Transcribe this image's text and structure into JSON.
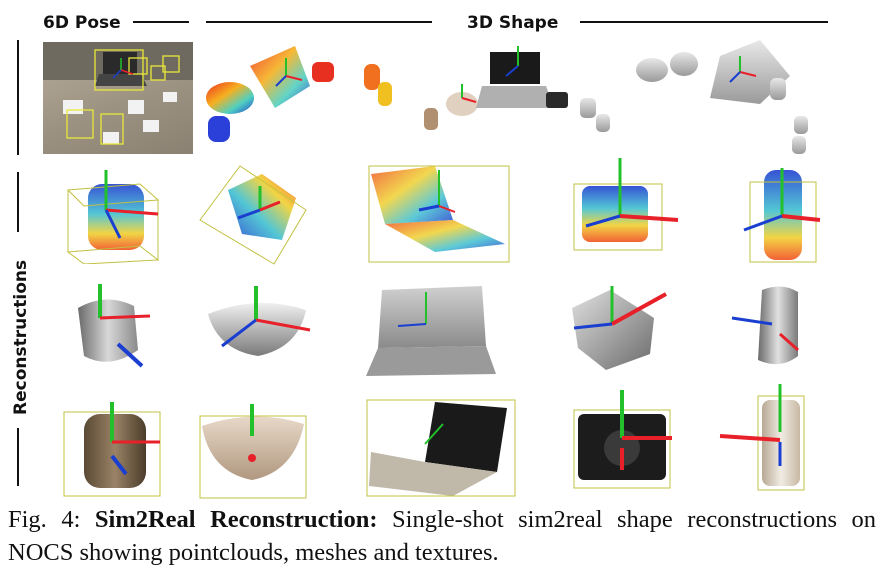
{
  "headers": {
    "pose": "6D Pose",
    "shape": "3D Shape",
    "reconstructions": "Reconstructions"
  },
  "caption": {
    "label": "Fig. 4:",
    "title": "Sim2Real Reconstruction:",
    "text": "Single-shot sim2real shape reconstructions on NOCS showing pointclouds, meshes and textures."
  },
  "colors": {
    "axis_x": "#e8202a",
    "axis_y": "#22c02a",
    "axis_z": "#1a3fd0",
    "bbox_yellow": "#e8e83a"
  }
}
